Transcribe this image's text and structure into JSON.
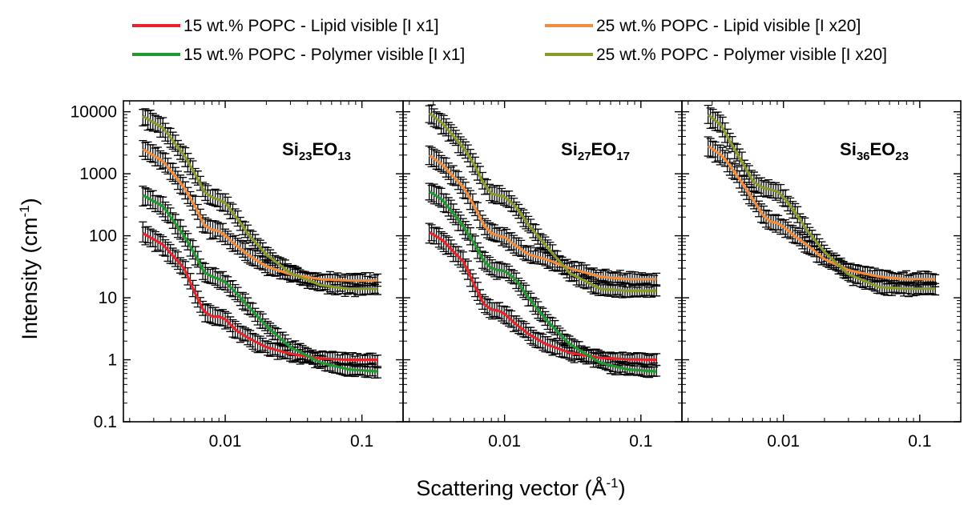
{
  "chart_data": {
    "type": "line",
    "x_scale": "log",
    "y_scale": "log",
    "xlim": [
      0.0018,
      0.2
    ],
    "ylim": [
      0.1,
      15000
    ],
    "x_ticks": [
      0.01,
      0.1
    ],
    "x_tick_labels": [
      "0.01",
      "0.1"
    ],
    "y_ticks": [
      0.1,
      1,
      10,
      100,
      1000,
      10000
    ],
    "y_tick_labels": [
      "0.1",
      "1",
      "10",
      "100",
      "1000",
      "10000"
    ],
    "xlabel_text": "Scattering vector (Å",
    "xlabel_sup": "-1",
    "xlabel_close": ")",
    "ylabel_text": "Intensity (cm",
    "ylabel_sup": "-1",
    "ylabel_close": ")",
    "grid": false,
    "legend_position": "top",
    "legend": [
      {
        "label": "15 wt.% POPC - Lipid visible [I x1]",
        "color": "#e8232a"
      },
      {
        "label": "25 wt.% POPC - Lipid visible [I x20]",
        "color": "#f28c3a"
      },
      {
        "label": "15 wt.% POPC - Polymer visible [I x1]",
        "color": "#1f9a2e"
      },
      {
        "label": "25 wt.% POPC - Polymer visible [I x20]",
        "color": "#8a9a2a"
      }
    ],
    "panels": [
      {
        "label_parts": [
          [
            "Si",
            "base"
          ],
          [
            "23",
            "sub"
          ],
          [
            "EO",
            "base"
          ],
          [
            "13",
            "sub"
          ]
        ],
        "series": [
          {
            "color": "#e8232a",
            "x": [
              0.0025,
              0.0035,
              0.005,
              0.006,
              0.007,
              0.008,
              0.009,
              0.01,
              0.012,
              0.015,
              0.02,
              0.03,
              0.05,
              0.08,
              0.13
            ],
            "y": [
              110,
              72,
              30,
              12,
              6,
              5,
              5,
              4.5,
              3,
              2.2,
              1.6,
              1.25,
              1.05,
              1.0,
              1.0
            ]
          },
          {
            "color": "#1f9a2e",
            "x": [
              0.0025,
              0.0035,
              0.005,
              0.006,
              0.007,
              0.008,
              0.009,
              0.01,
              0.012,
              0.015,
              0.02,
              0.03,
              0.05,
              0.08,
              0.13
            ],
            "y": [
              450,
              300,
              100,
              50,
              26,
              22,
              20,
              18,
              12,
              7,
              3.5,
              1.6,
              0.9,
              0.7,
              0.65
            ]
          },
          {
            "color": "#f28c3a",
            "x": [
              0.0025,
              0.0035,
              0.005,
              0.006,
              0.007,
              0.008,
              0.009,
              0.01,
              0.012,
              0.015,
              0.02,
              0.03,
              0.05,
              0.08,
              0.13
            ],
            "y": [
              2500,
              1600,
              600,
              300,
              150,
              125,
              120,
              100,
              70,
              48,
              32,
              24,
              20,
              19,
              19
            ]
          },
          {
            "color": "#8a9a2a",
            "x": [
              0.0025,
              0.0035,
              0.005,
              0.006,
              0.007,
              0.008,
              0.009,
              0.01,
              0.012,
              0.015,
              0.02,
              0.03,
              0.05,
              0.08,
              0.13
            ],
            "y": [
              8500,
              5500,
              2000,
              1000,
              520,
              420,
              380,
              340,
              200,
              100,
              50,
              25,
              16,
              14,
              14
            ]
          }
        ]
      },
      {
        "label_parts": [
          [
            "Si",
            "base"
          ],
          [
            "27",
            "sub"
          ],
          [
            "EO",
            "base"
          ],
          [
            "17",
            "sub"
          ]
        ],
        "series": [
          {
            "color": "#e8232a",
            "x": [
              0.0028,
              0.0035,
              0.005,
              0.006,
              0.007,
              0.008,
              0.009,
              0.01,
              0.012,
              0.015,
              0.02,
              0.03,
              0.05,
              0.08,
              0.13
            ],
            "y": [
              115,
              85,
              38,
              16,
              8,
              6.5,
              6.2,
              5.5,
              3.8,
              2.6,
              1.8,
              1.3,
              1.08,
              1.02,
              1.0
            ]
          },
          {
            "color": "#1f9a2e",
            "x": [
              0.0028,
              0.0035,
              0.005,
              0.006,
              0.007,
              0.008,
              0.009,
              0.01,
              0.012,
              0.015,
              0.02,
              0.03,
              0.05,
              0.08,
              0.13
            ],
            "y": [
              520,
              380,
              140,
              75,
              40,
              30,
              28,
              27,
              20,
              10,
              4.5,
              1.8,
              0.9,
              0.7,
              0.65
            ]
          },
          {
            "color": "#f28c3a",
            "x": [
              0.0028,
              0.0035,
              0.005,
              0.006,
              0.007,
              0.008,
              0.009,
              0.01,
              0.012,
              0.015,
              0.02,
              0.03,
              0.05,
              0.08,
              0.13
            ],
            "y": [
              2000,
              1400,
              600,
              300,
              150,
              110,
              100,
              95,
              70,
              50,
              42,
              30,
              22,
              20,
              20
            ]
          },
          {
            "color": "#8a9a2a",
            "x": [
              0.0028,
              0.0035,
              0.005,
              0.006,
              0.007,
              0.008,
              0.009,
              0.01,
              0.012,
              0.015,
              0.02,
              0.03,
              0.05,
              0.08,
              0.13
            ],
            "y": [
              9500,
              6500,
              2600,
              1400,
              700,
              480,
              450,
              420,
              300,
              150,
              70,
              25,
              14,
              13,
              13
            ]
          }
        ]
      },
      {
        "label_parts": [
          [
            "Si",
            "base"
          ],
          [
            "36",
            "sub"
          ],
          [
            "EO",
            "base"
          ],
          [
            "23",
            "sub"
          ]
        ],
        "series": [
          {
            "color": "#f28c3a",
            "x": [
              0.0028,
              0.0035,
              0.004,
              0.005,
              0.006,
              0.007,
              0.008,
              0.009,
              0.01,
              0.012,
              0.015,
              0.02,
              0.03,
              0.05,
              0.08,
              0.13
            ],
            "y": [
              2800,
              2000,
              1400,
              700,
              380,
              220,
              170,
              160,
              140,
              100,
              70,
              42,
              28,
              22,
              20,
              20
            ]
          },
          {
            "color": "#8a9a2a",
            "x": [
              0.0028,
              0.0035,
              0.004,
              0.005,
              0.006,
              0.007,
              0.008,
              0.009,
              0.01,
              0.012,
              0.015,
              0.02,
              0.03,
              0.05,
              0.08,
              0.13
            ],
            "y": [
              9000,
              6000,
              3500,
              1500,
              750,
              600,
              560,
              520,
              420,
              250,
              120,
              55,
              24,
              15,
              14,
              14
            ]
          }
        ]
      }
    ]
  }
}
